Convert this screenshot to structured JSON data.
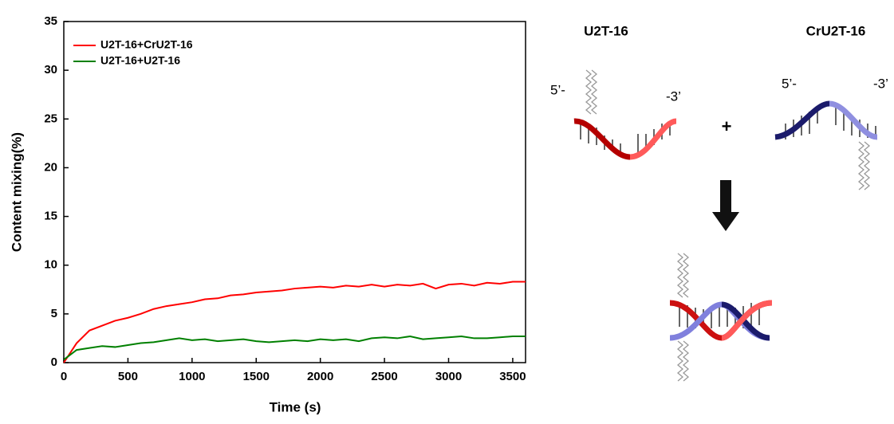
{
  "chart_data": {
    "type": "line",
    "xlabel": "Time (s)",
    "ylabel": "Content mixing(%)",
    "x": [
      0,
      100,
      200,
      300,
      400,
      500,
      600,
      700,
      800,
      900,
      1000,
      1100,
      1200,
      1300,
      1400,
      1500,
      1600,
      1700,
      1800,
      1900,
      2000,
      2100,
      2200,
      2300,
      2400,
      2500,
      2600,
      2700,
      2800,
      2900,
      3000,
      3100,
      3200,
      3300,
      3400,
      3500,
      3600
    ],
    "series": [
      {
        "name": "U2T-16+CrU2T-16",
        "color": "#ff0000",
        "values": [
          0,
          2.0,
          3.3,
          3.8,
          4.3,
          4.6,
          5.0,
          5.5,
          5.8,
          6.0,
          6.2,
          6.5,
          6.6,
          6.9,
          7.0,
          7.2,
          7.3,
          7.4,
          7.6,
          7.7,
          7.8,
          7.7,
          7.9,
          7.8,
          8.0,
          7.8,
          8.0,
          7.9,
          8.1,
          7.6,
          8.0,
          8.1,
          7.9,
          8.2,
          8.1,
          8.3,
          8.3
        ]
      },
      {
        "name": "U2T-16+U2T-16",
        "color": "#008000",
        "values": [
          0.3,
          1.3,
          1.5,
          1.7,
          1.6,
          1.8,
          2.0,
          2.1,
          2.3,
          2.5,
          2.3,
          2.4,
          2.2,
          2.3,
          2.4,
          2.2,
          2.1,
          2.2,
          2.3,
          2.2,
          2.4,
          2.3,
          2.4,
          2.2,
          2.5,
          2.6,
          2.5,
          2.7,
          2.4,
          2.5,
          2.6,
          2.7,
          2.5,
          2.5,
          2.6,
          2.7,
          2.7
        ]
      }
    ],
    "xlim": [
      0,
      3600
    ],
    "xticks": [
      0,
      500,
      1000,
      1500,
      2000,
      2500,
      3000,
      3500
    ],
    "ylim": [
      0,
      35
    ],
    "yticks": [
      0,
      5,
      10,
      15,
      20,
      25,
      30,
      35
    ],
    "grid": false,
    "legend": "upper left"
  },
  "diagram": {
    "labels": [
      "U2T-16",
      "CrU2T-16",
      "5’-",
      "-3’",
      "5’-",
      "-3’",
      "+"
    ]
  }
}
